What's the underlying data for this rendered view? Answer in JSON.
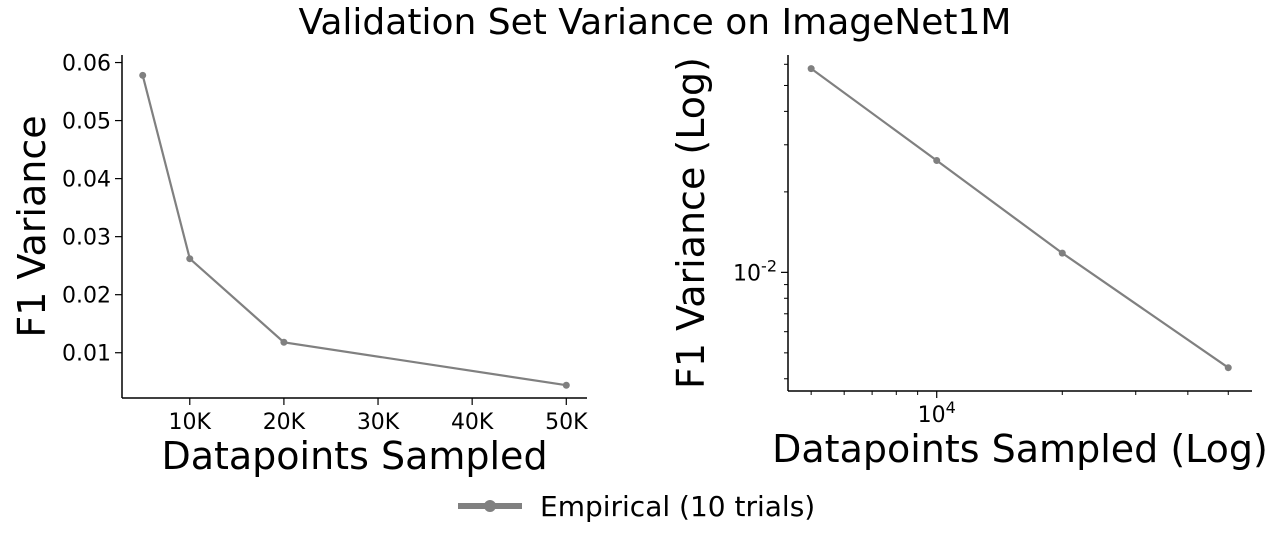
{
  "figure": {
    "title": "Validation Set Variance on ImageNet1M",
    "line_color": "#808080"
  },
  "legend": {
    "entries": [
      "Empirical (10 trials)"
    ],
    "placement": "bottom-center"
  },
  "chart_data": [
    {
      "type": "line",
      "xlabel": "Datapoints Sampled",
      "ylabel": "F1 Variance",
      "x_scale": "linear",
      "y_scale": "linear",
      "xlim": [
        2800,
        52200
      ],
      "ylim": [
        0.0022,
        0.0613
      ],
      "x_ticks": [
        10000,
        20000,
        30000,
        40000,
        50000
      ],
      "x_tick_labels": [
        "10K",
        "20K",
        "30K",
        "40K",
        "50K"
      ],
      "y_ticks": [
        0.01,
        0.02,
        0.03,
        0.04,
        0.05,
        0.06
      ],
      "y_tick_labels": [
        "0.01",
        "0.02",
        "0.03",
        "0.04",
        "0.05",
        "0.06"
      ],
      "grid": false,
      "series": [
        {
          "name": "Empirical (10 trials)",
          "x": [
            5000,
            10000,
            20000,
            50000
          ],
          "y": [
            0.0578,
            0.0262,
            0.0118,
            0.0044
          ]
        }
      ]
    },
    {
      "type": "line",
      "xlabel": "Datapoints Sampled (Log)",
      "ylabel": "F1 Variance (Log)",
      "x_scale": "log",
      "y_scale": "log",
      "xlim": [
        4400,
        57000
      ],
      "ylim": [
        0.0036,
        0.065
      ],
      "x_ticks": [
        10000
      ],
      "x_tick_labels": [
        "10^4"
      ],
      "y_ticks": [
        0.01
      ],
      "y_tick_labels": [
        "10^-2"
      ],
      "grid": false,
      "series": [
        {
          "name": "Empirical (10 trials)",
          "x": [
            5000,
            10000,
            20000,
            50000
          ],
          "y": [
            0.0578,
            0.0262,
            0.0118,
            0.0044
          ]
        }
      ]
    }
  ]
}
